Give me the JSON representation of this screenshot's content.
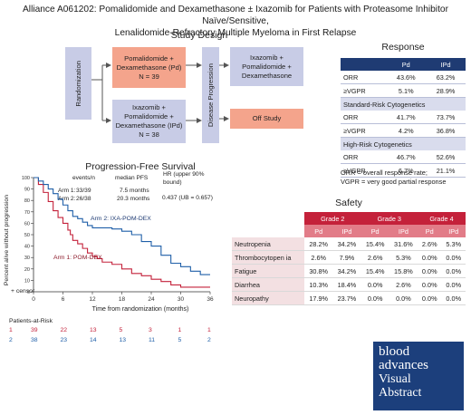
{
  "title_line1": "Alliance A061202: Pomalidomide and Dexamethasone ± Ixazomib for Patients with Proteasome Inhibitor Naïve/Sensitive,",
  "title_line2": "Lenalidomide-Refractory Multiple Myeloma in First Relapse",
  "study_design": {
    "title": "Study Design",
    "randomization": "Randomization",
    "arm_pd": [
      "Pomalidomide +",
      "Dexamethasone (Pd)",
      "N = 39"
    ],
    "arm_ipd": [
      "Ixazomib +",
      "Pomalidomide +",
      "Dexamethasone (IPd)",
      "N = 38"
    ],
    "disease_progression": "Disease Progression",
    "crossover": [
      "Ixazomib +",
      "Pomalidomide +",
      "Dexamethasone"
    ],
    "off_study": "Off Study",
    "colors": {
      "pd_box": "#f4a48c",
      "ipd_box": "#c8cce6"
    }
  },
  "response": {
    "title": "Response",
    "headers": [
      "",
      "Pd",
      "IPd"
    ],
    "overall": [
      {
        "label": "ORR",
        "pd": "43.6%",
        "ipd": "63.2%"
      },
      {
        "label": "≥VGPR",
        "pd": "5.1%",
        "ipd": "28.9%"
      }
    ],
    "standard_risk_title": "Standard-Risk Cytogenetics",
    "standard_risk": [
      {
        "label": "ORR",
        "pd": "41.7%",
        "ipd": "73.7%"
      },
      {
        "label": "≥VGPR",
        "pd": "4.2%",
        "ipd": "36.8%"
      }
    ],
    "high_risk_title": "High-Risk Cytogenetics",
    "high_risk": [
      {
        "label": "ORR",
        "pd": "46.7%",
        "ipd": "52.6%"
      },
      {
        "label": "≥VGPR",
        "pd": "6.7%",
        "ipd": "21.1%"
      }
    ],
    "footnote1": "ORR = overall response rate;",
    "footnote2": "VGPR = very good partial response"
  },
  "pfs": {
    "title": "Progression-Free Survival",
    "ylabel": "Percent alive without progression",
    "xlabel": "Time from randomization (months)",
    "col_events": "events/n",
    "col_median": "median PFS",
    "col_hr": "HR (upper 90% bound)",
    "arm1": {
      "name": "Arm 1:",
      "events": "33/39",
      "median": "7.5 months"
    },
    "arm2": {
      "name": "Arm 2:",
      "events": "26/38",
      "median": "20.3 months"
    },
    "hr": "0.437 (UB = 0.657)",
    "label_arm2": "Arm 2: IXA-POM-DEX",
    "label_arm1": "Arm 1: POM-DEX",
    "censor": "+ censor",
    "risk_title": "Patients-at-Risk",
    "risk": [
      {
        "arm": "1",
        "values": [
          "39",
          "22",
          "13",
          "5",
          "3",
          "1",
          "1"
        ],
        "color": "#c4213a"
      },
      {
        "arm": "2",
        "values": [
          "38",
          "23",
          "14",
          "13",
          "11",
          "5",
          "2"
        ],
        "color": "#1f5fa8"
      }
    ]
  },
  "chart_data": {
    "type": "line",
    "title": "Progression-Free Survival",
    "xlabel": "Time from randomization (months)",
    "ylabel": "Percent alive without progression",
    "xlim": [
      0,
      36
    ],
    "ylim": [
      0,
      100
    ],
    "x_ticks": [
      "0",
      "6",
      "12",
      "18",
      "24",
      "30",
      "36"
    ],
    "y_ticks": [
      "0",
      "10",
      "20",
      "30",
      "40",
      "50",
      "60",
      "70",
      "80",
      "90",
      "100"
    ],
    "series": [
      {
        "name": "Arm 1: POM-DEX",
        "color": "#c4213a",
        "points": [
          [
            0,
            100
          ],
          [
            1,
            94
          ],
          [
            2,
            87
          ],
          [
            3,
            79
          ],
          [
            4,
            71
          ],
          [
            5,
            65
          ],
          [
            6,
            60
          ],
          [
            7,
            54
          ],
          [
            7.5,
            50
          ],
          [
            8,
            45
          ],
          [
            9,
            42
          ],
          [
            10,
            38
          ],
          [
            11,
            34
          ],
          [
            12,
            31
          ],
          [
            13,
            29
          ],
          [
            14,
            26
          ],
          [
            16,
            24
          ],
          [
            18,
            20
          ],
          [
            20,
            16
          ],
          [
            22,
            14
          ],
          [
            24,
            11
          ],
          [
            26,
            9
          ],
          [
            28,
            6
          ],
          [
            30,
            4
          ],
          [
            34,
            4
          ],
          [
            36,
            4
          ]
        ]
      },
      {
        "name": "Arm 2: IXA-POM-DEX",
        "color": "#1f5fa8",
        "points": [
          [
            0,
            100
          ],
          [
            1,
            97
          ],
          [
            2,
            94
          ],
          [
            3,
            90
          ],
          [
            4,
            86
          ],
          [
            5,
            81
          ],
          [
            6,
            76
          ],
          [
            7,
            71
          ],
          [
            8,
            66
          ],
          [
            9,
            64
          ],
          [
            10,
            61
          ],
          [
            11,
            58
          ],
          [
            12,
            56
          ],
          [
            14,
            56
          ],
          [
            16,
            55
          ],
          [
            18,
            53
          ],
          [
            20,
            50
          ],
          [
            22,
            44
          ],
          [
            24,
            40
          ],
          [
            26,
            32
          ],
          [
            28,
            25
          ],
          [
            30,
            22
          ],
          [
            32,
            18
          ],
          [
            34,
            15
          ],
          [
            36,
            15
          ]
        ]
      }
    ]
  },
  "safety": {
    "title": "Safety",
    "grades": [
      "Grade 2",
      "Grade 3",
      "Grade 4"
    ],
    "sub": [
      "Pd",
      "IPd"
    ],
    "rows": [
      {
        "label": "Neutropenia",
        "v": [
          "28.2%",
          "34.2%",
          "15.4%",
          "31.6%",
          "2.6%",
          "5.3%"
        ]
      },
      {
        "label": "Thrombocytopen ia",
        "v": [
          "2.6%",
          "7.9%",
          "2.6%",
          "5.3%",
          "0.0%",
          "0.0%"
        ]
      },
      {
        "label": "Fatigue",
        "v": [
          "30.8%",
          "34.2%",
          "15.4%",
          "15.8%",
          "0.0%",
          "0.0%"
        ]
      },
      {
        "label": "Diarrhea",
        "v": [
          "10.3%",
          "18.4%",
          "0.0%",
          "2.6%",
          "0.0%",
          "0.0%"
        ]
      },
      {
        "label": "Neuropathy",
        "v": [
          "17.9%",
          "23.7%",
          "0.0%",
          "0.0%",
          "0.0%",
          "0.0%"
        ]
      }
    ]
  },
  "logo": {
    "line1": "blood",
    "line2": "advances",
    "line3": "Visual",
    "line4": "Abstract"
  }
}
